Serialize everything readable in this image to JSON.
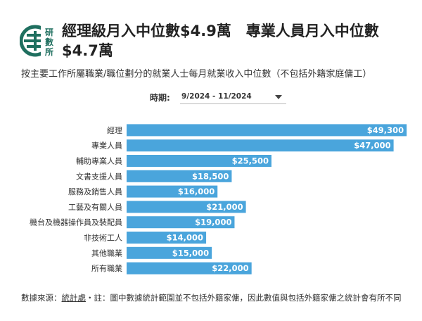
{
  "header": {
    "title": "經理級月入中位數$4.9萬　專業人員月入中位數$4.7萬",
    "subtitle": "按主要工作所屬職業/職位劃分的就業人士每月就業收入中位數（不包括外籍家庭傭工）",
    "logo_text": [
      "研",
      "數",
      "所"
    ]
  },
  "filter": {
    "label": "時期:",
    "selected": "9/2024 - 11/2024"
  },
  "colors": {
    "bar": "#4aa5dc",
    "label": "#ffffff",
    "logo": "#1f6f5f"
  },
  "chart_data": {
    "type": "bar",
    "orientation": "horizontal",
    "categories": [
      "經理",
      "專業人員",
      "輔助專業人員",
      "文書支援人員",
      "服務及銷售人員",
      "工藝及有關人員",
      "機台及機器操作員及裝配員",
      "非技術工人",
      "其他職業",
      "所有職業"
    ],
    "values": [
      49300,
      47000,
      25500,
      18500,
      16000,
      21000,
      19000,
      14000,
      15000,
      22000
    ],
    "value_labels": [
      "$49,300",
      "$47,000",
      "$25,500",
      "$18,500",
      "$16,000",
      "$21,000",
      "$19,000",
      "$14,000",
      "$15,000",
      "$22,000"
    ],
    "xlim": [
      0,
      52000
    ],
    "grid": false,
    "legend": "none"
  },
  "footer": {
    "source_prefix": "數據來源：",
    "source_link": "統計處",
    "note": "・註：圖中數據統計範圍並不包括外籍家傭，因此數值與包括外籍家傭之統計會有所不同"
  }
}
